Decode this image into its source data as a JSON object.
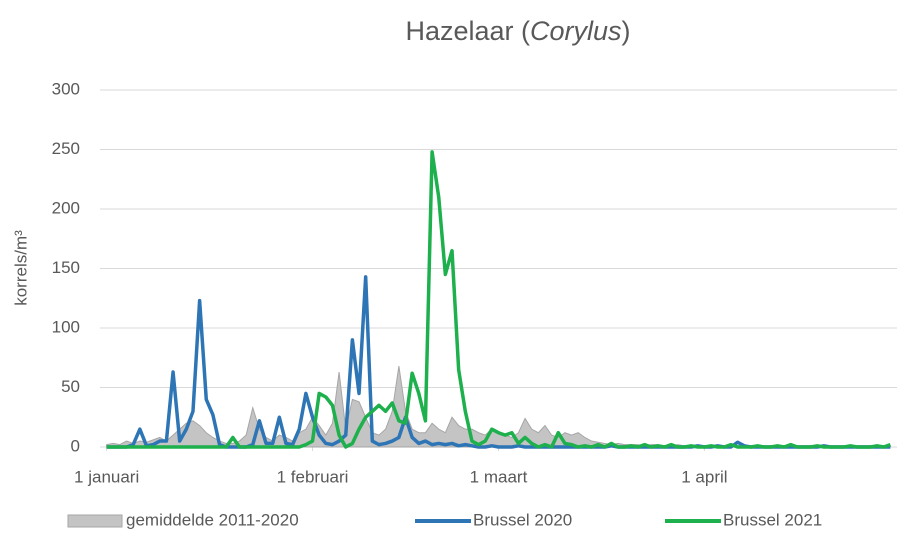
{
  "chart_data": {
    "type": "line",
    "title": [
      "Hazelaar (",
      "Corylus",
      ")"
    ],
    "y_label": "korrels/m³",
    "x": [
      0,
      1,
      2,
      3,
      4,
      5,
      6,
      7,
      8,
      9,
      10,
      11,
      12,
      13,
      14,
      15,
      16,
      17,
      18,
      19,
      20,
      21,
      22,
      23,
      24,
      25,
      26,
      27,
      28,
      29,
      30,
      31,
      32,
      33,
      34,
      35,
      36,
      37,
      38,
      39,
      40,
      41,
      42,
      43,
      44,
      45,
      46,
      47,
      48,
      49,
      50,
      51,
      52,
      53,
      54,
      55,
      56,
      57,
      58,
      59,
      60,
      61,
      62,
      63,
      64,
      65,
      66,
      67,
      68,
      69,
      70,
      71,
      72,
      73,
      74,
      75,
      76,
      77,
      78,
      79,
      80,
      81,
      82,
      83,
      84,
      85,
      86,
      87,
      88,
      89,
      90,
      91,
      92,
      93,
      94,
      95,
      96,
      97,
      98,
      99,
      100,
      101,
      102,
      103,
      104,
      105,
      106,
      107,
      108,
      109,
      110,
      111,
      112,
      113,
      114,
      115,
      116,
      117,
      118
    ],
    "xlim": [
      -1,
      119
    ],
    "xticks": [
      {
        "value": 0,
        "label": "1 januari"
      },
      {
        "value": 31,
        "label": "1 februari"
      },
      {
        "value": 59,
        "label": "1 maart"
      },
      {
        "value": 90,
        "label": "1 april"
      }
    ],
    "ylim": [
      0,
      300
    ],
    "yticks": [
      0,
      50,
      100,
      150,
      200,
      250,
      300
    ],
    "grid": true,
    "legend": "bottom",
    "series": [
      {
        "name": "gemiddelde 2011-2020",
        "color": "#c4c4c4",
        "fill": true,
        "values": [
          2,
          3,
          2,
          5,
          3,
          5,
          4,
          6,
          8,
          5,
          10,
          15,
          20,
          22,
          18,
          12,
          8,
          5,
          3,
          3,
          5,
          10,
          33,
          15,
          8,
          5,
          10,
          8,
          5,
          12,
          15,
          25,
          18,
          10,
          20,
          63,
          15,
          40,
          38,
          25,
          12,
          10,
          15,
          30,
          68,
          30,
          15,
          12,
          12,
          20,
          15,
          12,
          25,
          18,
          15,
          15,
          12,
          10,
          15,
          12,
          10,
          8,
          12,
          24,
          15,
          12,
          18,
          10,
          8,
          12,
          10,
          12,
          8,
          5,
          4,
          3,
          2,
          3,
          2,
          2,
          2,
          1,
          2,
          2,
          1,
          1,
          2,
          1,
          1,
          1,
          1,
          1,
          1,
          1,
          2,
          1,
          1,
          1,
          1,
          1,
          1,
          1,
          1,
          1,
          1,
          1,
          1,
          1,
          1,
          1,
          1,
          1,
          1,
          1,
          1,
          1,
          1,
          1,
          1
        ]
      },
      {
        "name": "Brussel 2020",
        "color": "#2e75b6",
        "values": [
          0,
          0,
          0,
          0,
          2,
          15,
          1,
          2,
          5,
          5,
          63,
          5,
          15,
          30,
          123,
          40,
          27,
          2,
          0,
          0,
          0,
          0,
          2,
          22,
          3,
          3,
          25,
          3,
          2,
          15,
          45,
          25,
          10,
          3,
          2,
          5,
          10,
          90,
          45,
          143,
          5,
          2,
          3,
          5,
          8,
          25,
          8,
          3,
          5,
          2,
          3,
          2,
          3,
          1,
          2,
          1,
          0,
          0,
          1,
          0,
          0,
          0,
          1,
          0,
          0,
          0,
          0,
          0,
          0,
          0,
          0,
          0,
          0,
          0,
          0,
          0,
          1,
          0,
          0,
          0,
          0,
          0,
          0,
          0,
          0,
          0,
          0,
          0,
          0,
          1,
          0,
          0,
          1,
          0,
          0,
          4,
          1,
          0,
          0,
          0,
          0,
          0,
          0,
          0,
          0,
          0,
          0,
          0,
          1,
          0,
          0,
          0,
          0,
          0,
          0,
          0,
          0,
          0,
          0
        ]
      },
      {
        "name": "Brussel 2021",
        "color": "#1db04c",
        "values": [
          0,
          0,
          0,
          0,
          0,
          0,
          0,
          0,
          0,
          0,
          0,
          0,
          0,
          0,
          0,
          0,
          0,
          0,
          0,
          8,
          0,
          0,
          0,
          0,
          0,
          0,
          0,
          0,
          0,
          0,
          2,
          5,
          45,
          42,
          35,
          10,
          0,
          3,
          15,
          25,
          30,
          35,
          30,
          37,
          22,
          20,
          62,
          45,
          22,
          248,
          210,
          145,
          165,
          65,
          30,
          5,
          2,
          5,
          15,
          12,
          10,
          12,
          3,
          8,
          3,
          0,
          2,
          0,
          12,
          3,
          2,
          0,
          1,
          0,
          2,
          0,
          3,
          0,
          0,
          1,
          0,
          2,
          0,
          1,
          0,
          2,
          0,
          0,
          1,
          0,
          0,
          1,
          0,
          0,
          2,
          0,
          0,
          0,
          1,
          0,
          0,
          1,
          0,
          2,
          0,
          0,
          0,
          1,
          0,
          0,
          0,
          0,
          1,
          0,
          0,
          0,
          1,
          0,
          2
        ]
      }
    ]
  }
}
